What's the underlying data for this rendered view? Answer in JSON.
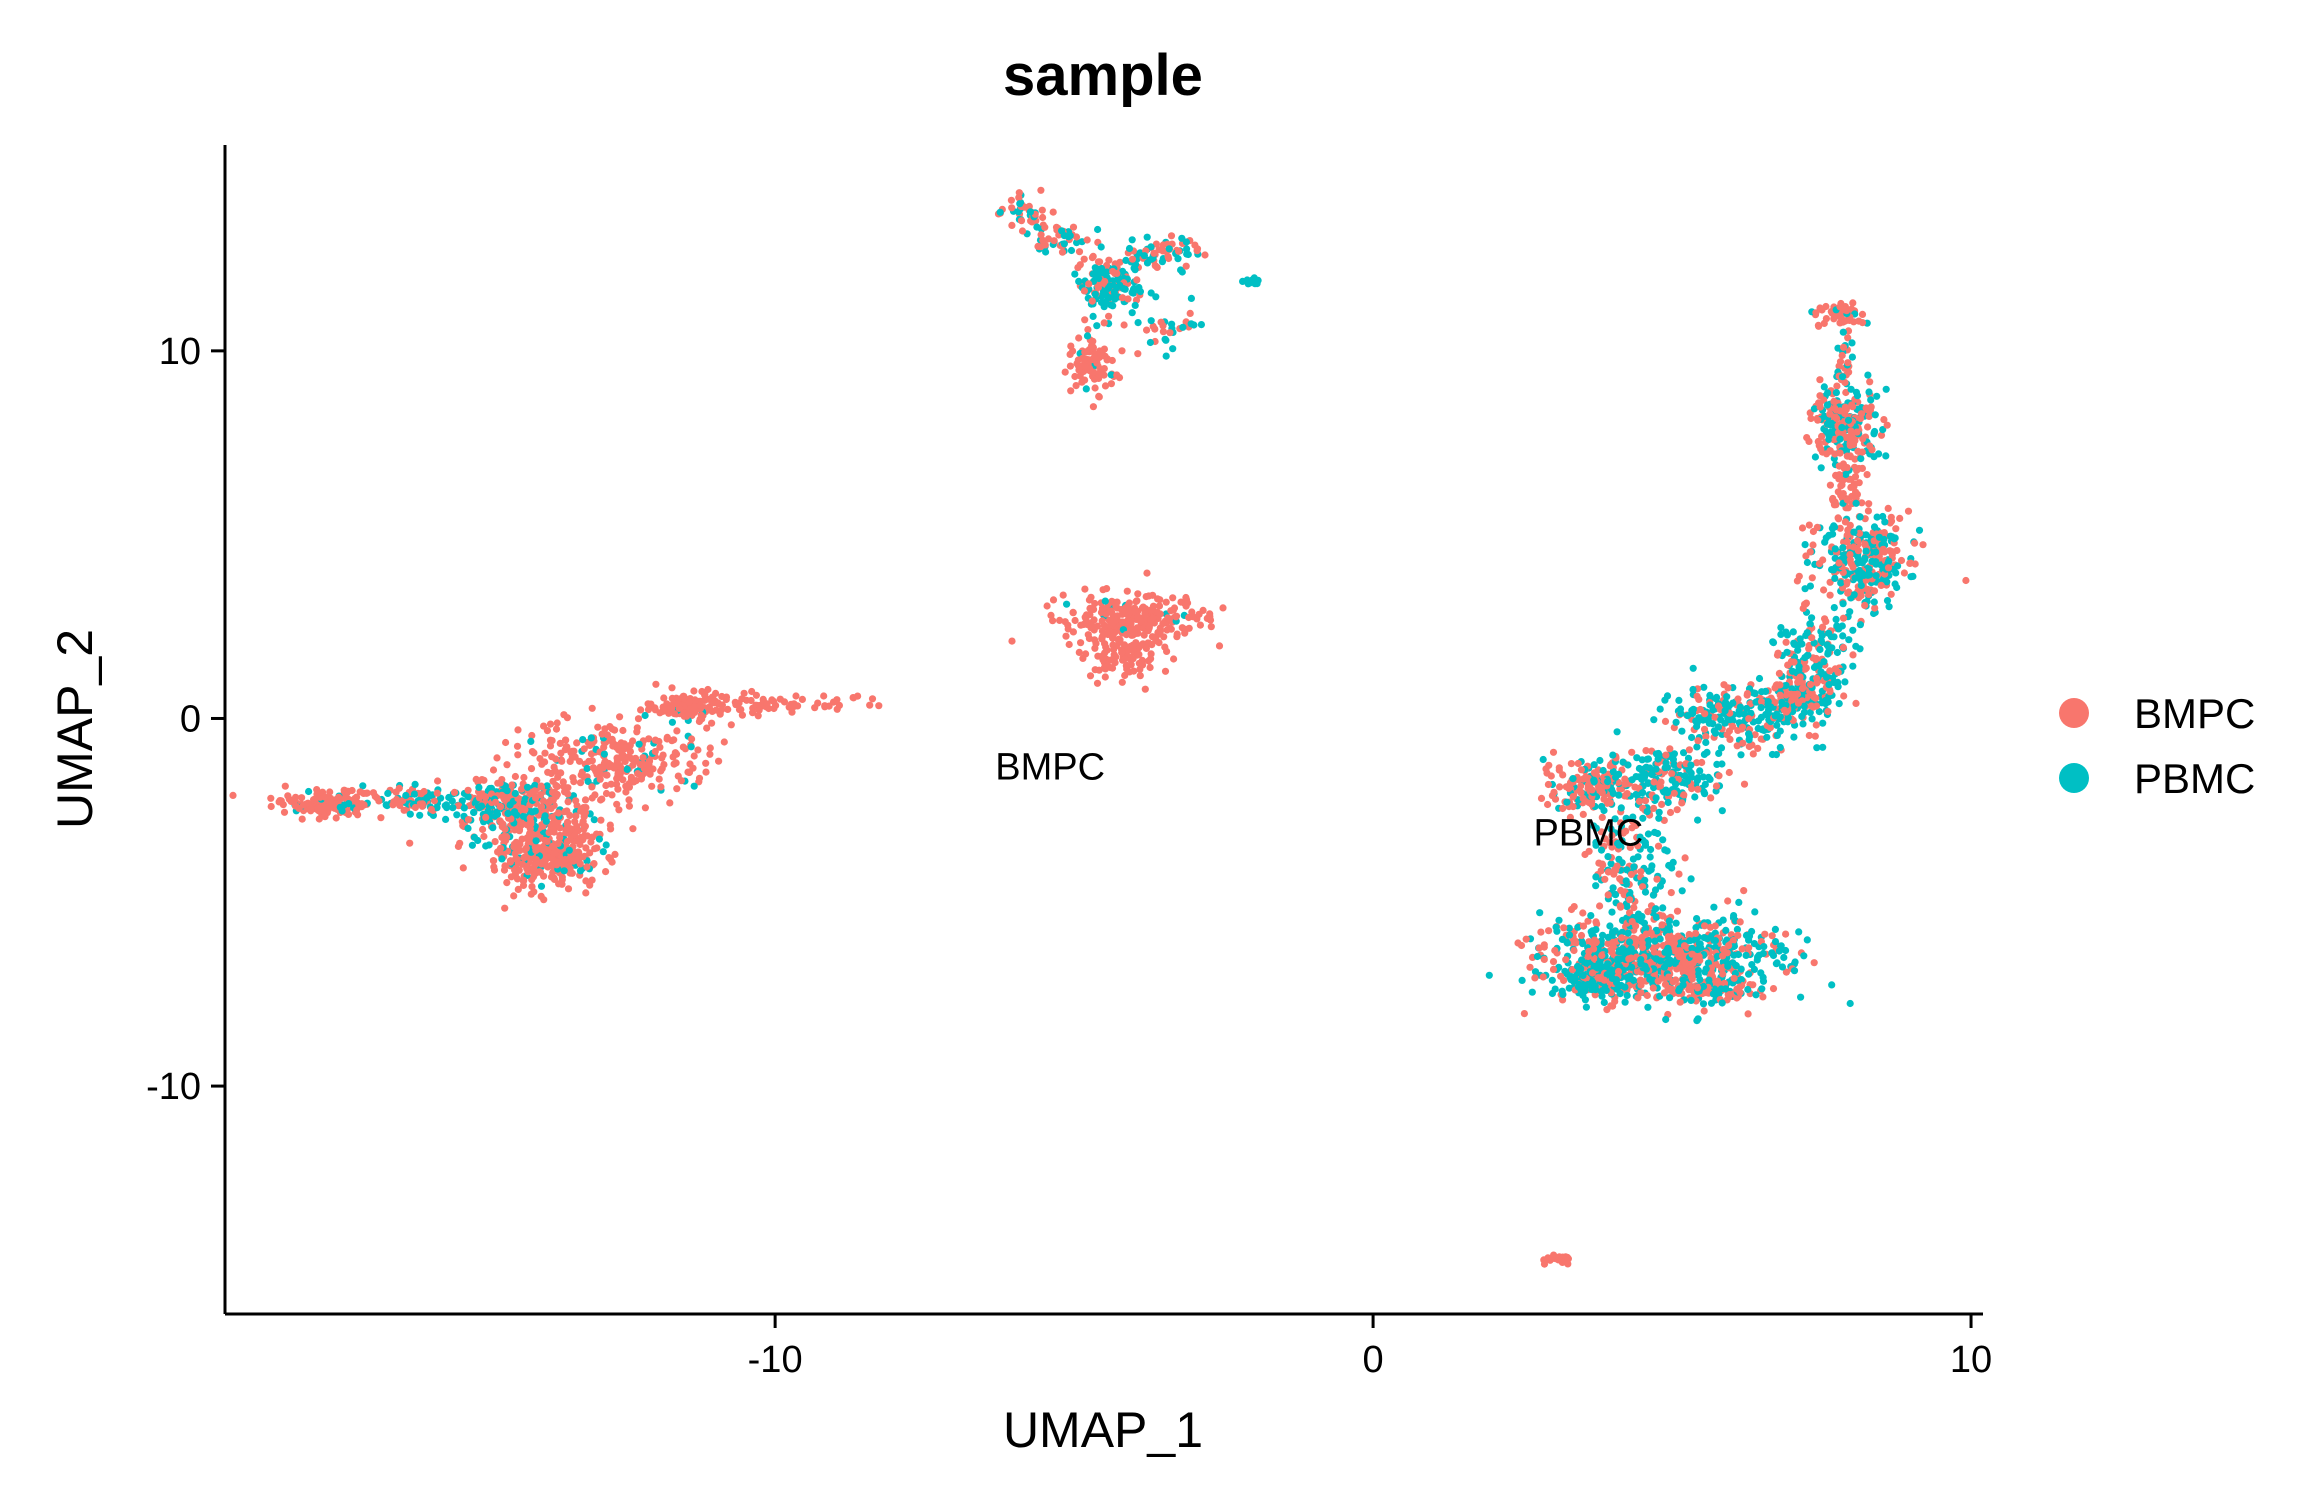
{
  "chart_data": {
    "type": "scatter",
    "title": "sample",
    "xlabel": "UMAP_1",
    "ylabel": "UMAP_2",
    "xlim": [
      -19.2,
      10.2
    ],
    "ylim": [
      -16.2,
      15.6
    ],
    "xticks": [
      -10,
      0,
      10
    ],
    "yticks": [
      -10,
      0,
      10
    ],
    "xtick_labels": [
      "-10",
      "0",
      "10"
    ],
    "ytick_labels": [
      "-10",
      "0",
      "10"
    ],
    "grid": false,
    "legend_position": "right",
    "series": [
      {
        "name": "BMPC",
        "color": "#F8766D"
      },
      {
        "name": "PBMC",
        "color": "#00BFC4"
      }
    ],
    "cluster_labels": [
      {
        "text": "BMPC",
        "x": -5.4,
        "y": -1.3
      },
      {
        "text": "PBMC",
        "x": 3.6,
        "y": -3.1
      }
    ],
    "clusters": [
      {
        "x": -17.5,
        "y": -2.3,
        "sx": 0.45,
        "sy": 0.18,
        "n": 150,
        "pbmc": 0.08
      },
      {
        "x": -16.0,
        "y": -2.2,
        "sx": 0.35,
        "sy": 0.18,
        "n": 70,
        "pbmc": 0.55
      },
      {
        "x": -14.8,
        "y": -2.4,
        "sx": 0.45,
        "sy": 0.35,
        "n": 170,
        "pbmc": 0.55
      },
      {
        "x": -13.9,
        "y": -2.8,
        "sx": 0.55,
        "sy": 0.7,
        "n": 300,
        "pbmc": 0.2
      },
      {
        "x": -13.8,
        "y": -3.8,
        "sx": 0.45,
        "sy": 0.35,
        "n": 220,
        "pbmc": 0.08
      },
      {
        "x": -12.6,
        "y": -1.1,
        "sx": 0.8,
        "sy": 0.5,
        "n": 260,
        "pbmc": 0.08
      },
      {
        "x": -11.4,
        "y": 0.3,
        "sx": 0.4,
        "sy": 0.22,
        "n": 130,
        "pbmc": 0.04
      },
      {
        "x": -9.5,
        "y": 0.4,
        "sx": 0.55,
        "sy": 0.12,
        "n": 45,
        "pbmc": 0.0
      },
      {
        "x": -5.8,
        "y": 13.8,
        "sx": 0.25,
        "sy": 0.2,
        "n": 40,
        "pbmc": 0.3
      },
      {
        "x": -5.2,
        "y": 13.0,
        "sx": 0.25,
        "sy": 0.25,
        "n": 50,
        "pbmc": 0.45
      },
      {
        "x": -4.4,
        "y": 11.8,
        "sx": 0.28,
        "sy": 0.4,
        "n": 150,
        "pbmc": 0.6
      },
      {
        "x": -3.5,
        "y": 12.7,
        "sx": 0.3,
        "sy": 0.25,
        "n": 60,
        "pbmc": 0.55
      },
      {
        "x": -4.7,
        "y": 9.6,
        "sx": 0.2,
        "sy": 0.4,
        "n": 90,
        "pbmc": 0.05
      },
      {
        "x": -3.4,
        "y": 10.6,
        "sx": 0.3,
        "sy": 0.25,
        "n": 30,
        "pbmc": 0.6
      },
      {
        "x": -2.0,
        "y": 11.9,
        "sx": 0.1,
        "sy": 0.08,
        "n": 12,
        "pbmc": 1.0
      },
      {
        "x": -4.0,
        "y": 2.7,
        "sx": 0.6,
        "sy": 0.35,
        "n": 260,
        "pbmc": 0.03
      },
      {
        "x": -4.2,
        "y": 1.7,
        "sx": 0.3,
        "sy": 0.35,
        "n": 90,
        "pbmc": 0.0
      },
      {
        "x": 7.8,
        "y": 11.0,
        "sx": 0.2,
        "sy": 0.18,
        "n": 50,
        "pbmc": 0.1
      },
      {
        "x": 7.9,
        "y": 9.8,
        "sx": 0.08,
        "sy": 0.45,
        "n": 25,
        "pbmc": 0.5
      },
      {
        "x": 7.9,
        "y": 8.0,
        "sx": 0.3,
        "sy": 0.5,
        "n": 230,
        "pbmc": 0.45
      },
      {
        "x": 7.9,
        "y": 6.3,
        "sx": 0.12,
        "sy": 0.45,
        "n": 60,
        "pbmc": 0.1
      },
      {
        "x": 8.2,
        "y": 4.3,
        "sx": 0.4,
        "sy": 0.6,
        "n": 320,
        "pbmc": 0.55
      },
      {
        "x": 7.4,
        "y": 1.8,
        "sx": 0.35,
        "sy": 0.7,
        "n": 150,
        "pbmc": 0.55
      },
      {
        "x": 7.2,
        "y": 0.7,
        "sx": 0.3,
        "sy": 0.35,
        "n": 110,
        "pbmc": 0.3
      },
      {
        "x": 6.1,
        "y": 0.0,
        "sx": 0.6,
        "sy": 0.45,
        "n": 230,
        "pbmc": 0.6
      },
      {
        "x": 4.9,
        "y": -1.6,
        "sx": 0.5,
        "sy": 0.45,
        "n": 180,
        "pbmc": 0.7
      },
      {
        "x": 3.7,
        "y": -1.8,
        "sx": 0.45,
        "sy": 0.35,
        "n": 180,
        "pbmc": 0.3
      },
      {
        "x": 4.3,
        "y": -4.2,
        "sx": 0.35,
        "sy": 0.8,
        "n": 160,
        "pbmc": 0.55
      },
      {
        "x": 4.8,
        "y": -6.5,
        "sx": 1.0,
        "sy": 0.55,
        "n": 800,
        "pbmc": 0.5
      },
      {
        "x": 3.7,
        "y": -7.1,
        "sx": 0.35,
        "sy": 0.25,
        "n": 140,
        "pbmc": 0.75
      },
      {
        "x": 5.6,
        "y": -7.4,
        "sx": 0.4,
        "sy": 0.15,
        "n": 120,
        "pbmc": 0.3
      },
      {
        "x": 3.1,
        "y": -14.7,
        "sx": 0.12,
        "sy": 0.08,
        "n": 25,
        "pbmc": 0.0
      }
    ]
  }
}
